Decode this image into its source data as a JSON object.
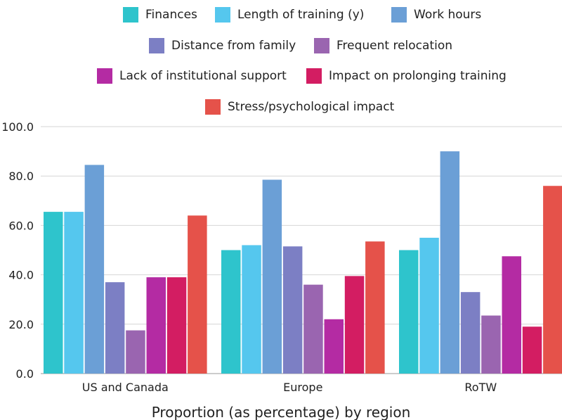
{
  "chart_data": {
    "type": "bar",
    "categories": [
      "US and Canada",
      "Europe",
      "RoTW"
    ],
    "series": [
      {
        "name": "Finances",
        "color": "#2ec4cc",
        "values": [
          65.5,
          50.0,
          50.0
        ]
      },
      {
        "name": "Length of training (y)",
        "color": "#55c7ee",
        "values": [
          65.5,
          52.0,
          55.0
        ]
      },
      {
        "name": "Work hours",
        "color": "#6b9fd6",
        "values": [
          84.5,
          78.5,
          90.0
        ]
      },
      {
        "name": "Distance from family",
        "color": "#7c7fc4",
        "values": [
          37.0,
          51.5,
          33.0
        ]
      },
      {
        "name": "Frequent relocation",
        "color": "#9a65b0",
        "values": [
          17.5,
          36.0,
          23.5
        ]
      },
      {
        "name": "Lack of institutional support",
        "color": "#b42ba3",
        "values": [
          39.0,
          22.0,
          47.5
        ]
      },
      {
        "name": "Impact on prolonging training",
        "color": "#d31d62",
        "values": [
          39.0,
          39.5,
          19.0
        ]
      },
      {
        "name": "Stress/psychological impact",
        "color": "#e5524a",
        "values": [
          64.0,
          53.5,
          76.0
        ]
      }
    ],
    "yticks": [
      "0.0",
      "20.0",
      "40.0",
      "60.0",
      "80.0",
      "100.0"
    ],
    "ylim": [
      0,
      100
    ],
    "xlabel": "Proportion (as percentage) by region",
    "grid": true,
    "legend_position": "top"
  }
}
